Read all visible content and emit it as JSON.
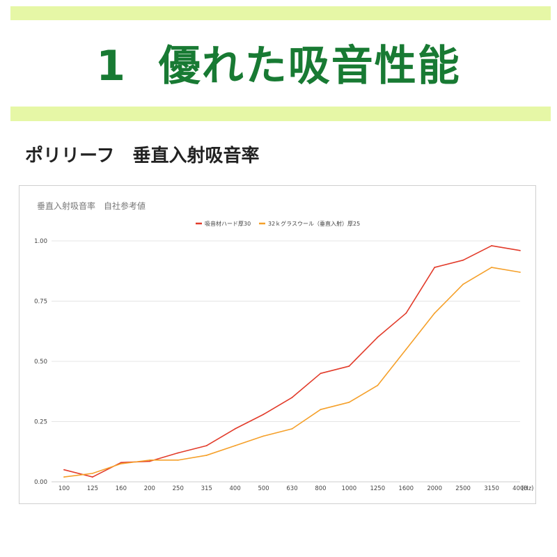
{
  "page": {
    "headline": "1  優れた吸音性能",
    "subtitle": "ポリリーフ　垂直入射吸音率"
  },
  "colors": {
    "band": "#e6f7a6",
    "headline": "#187a33"
  },
  "chart_data": {
    "type": "line",
    "title": "垂直入射吸音率　自社参考値",
    "xlabel": "",
    "x_unit_label": "(Hz)",
    "ylabel": "",
    "categories": [
      "100",
      "125",
      "160",
      "200",
      "250",
      "315",
      "400",
      "500",
      "630",
      "800",
      "1000",
      "1250",
      "1600",
      "2000",
      "2500",
      "3150",
      "4000"
    ],
    "yticks": [
      "0.00",
      "0.25",
      "0.50",
      "0.75",
      "1.00"
    ],
    "ylim": [
      0,
      1
    ],
    "grid": true,
    "legend_position": "top-center",
    "series": [
      {
        "name": "吸音材ハード厚30",
        "color": "#e23b2a",
        "values": [
          0.05,
          0.02,
          0.08,
          0.085,
          0.12,
          0.15,
          0.22,
          0.28,
          0.35,
          0.45,
          0.48,
          0.6,
          0.7,
          0.89,
          0.92,
          0.98,
          0.96
        ]
      },
      {
        "name": "32ｋグラスウール（垂直入射）厚25",
        "color": "#f5a02a",
        "values": [
          0.02,
          0.035,
          0.075,
          0.09,
          0.09,
          0.11,
          0.15,
          0.19,
          0.22,
          0.3,
          0.33,
          0.4,
          0.55,
          0.7,
          0.82,
          0.89,
          0.87
        ]
      }
    ]
  }
}
